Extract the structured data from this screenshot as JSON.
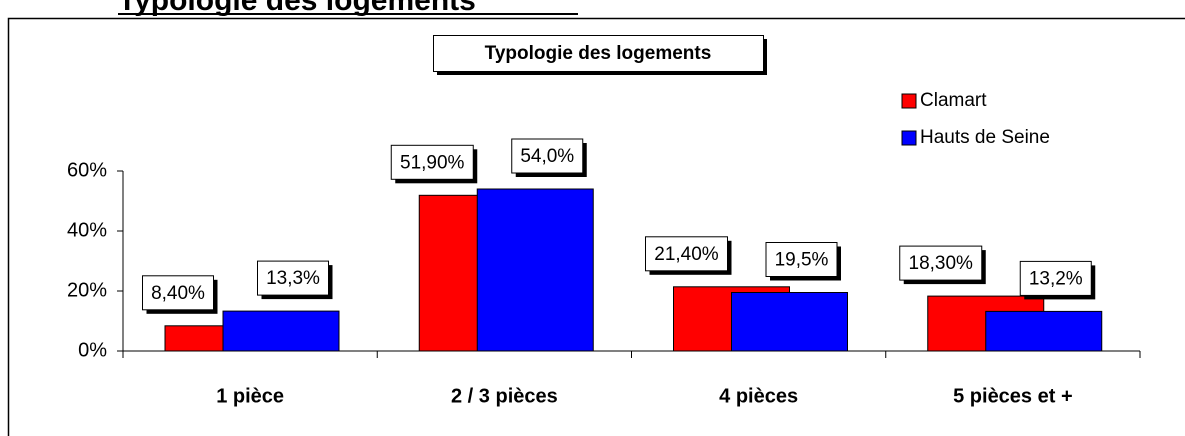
{
  "heading": "Typologie des logements",
  "chart_data": {
    "type": "bar",
    "title": "Typologie des logements",
    "categories": [
      "1 pièce",
      "2 / 3 pièces",
      "4 pièces",
      "5 pièces et +"
    ],
    "series": [
      {
        "name": "Clamart",
        "color": "#ff0000",
        "values": [
          8.4,
          51.9,
          21.4,
          18.3
        ],
        "value_labels": [
          "8,40%",
          "51,90%",
          "21,40%",
          "18,30%"
        ]
      },
      {
        "name": "Hauts de Seine",
        "color": "#0000ff",
        "values": [
          13.3,
          54.0,
          19.5,
          13.2
        ],
        "value_labels": [
          "13,3%",
          "54,0%",
          "19,5%",
          "13,2%"
        ]
      }
    ],
    "ylim": [
      0,
      60
    ],
    "yticks": [
      {
        "value": 0,
        "label": "0%"
      },
      {
        "value": 20,
        "label": "20%"
      },
      {
        "value": 40,
        "label": "40%"
      },
      {
        "value": 60,
        "label": "60%"
      }
    ],
    "legend": "top-right"
  }
}
